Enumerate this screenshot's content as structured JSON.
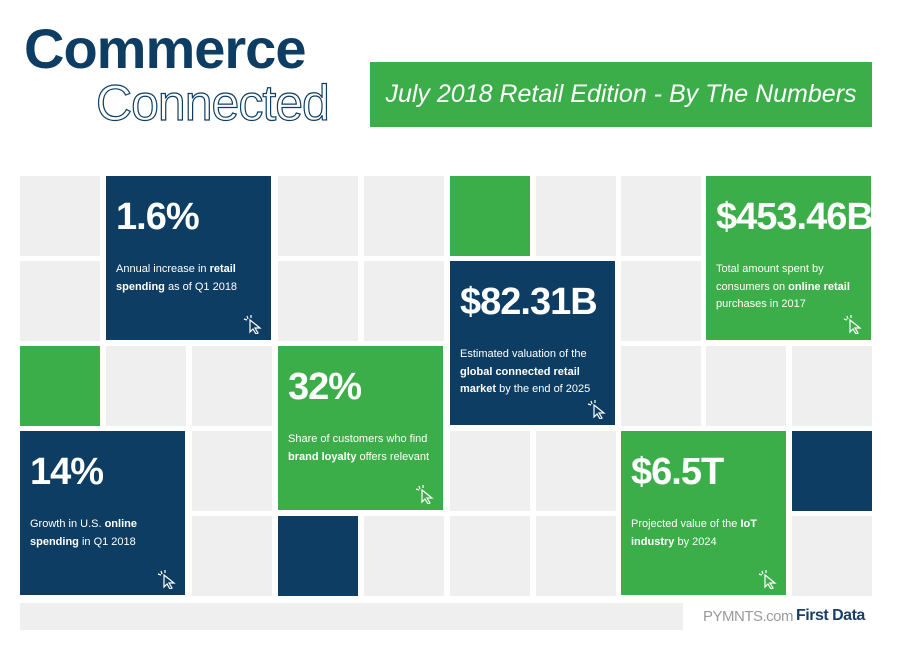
{
  "header": {
    "title_bold": "Commerce",
    "title_light": "Connected",
    "banner": "July 2018 Retail Edition - By The Numbers"
  },
  "cards": [
    {
      "value": "1.6%",
      "color": "#0e3d63",
      "description": [
        {
          "text": "Annual increase in ",
          "bold": false
        },
        {
          "text": "retail spending",
          "bold": true
        },
        {
          "text": " as of Q1 2018",
          "bold": false
        }
      ]
    },
    {
      "value": "$453.46B",
      "color": "#3cae49",
      "description": [
        {
          "text": "Total amount spent by consumers on ",
          "bold": false
        },
        {
          "text": "online retail",
          "bold": true
        },
        {
          "text": " purchases in 2017",
          "bold": false
        }
      ]
    },
    {
      "value": "$82.31B",
      "color": "#0e3d63",
      "description": [
        {
          "text": "Estimated valuation of the ",
          "bold": false
        },
        {
          "text": "global connected retail market",
          "bold": true
        },
        {
          "text": " by the end of 2025",
          "bold": false
        }
      ]
    },
    {
      "value": "32%",
      "color": "#3cae49",
      "description": [
        {
          "text": "Share of customers who find ",
          "bold": false
        },
        {
          "text": "brand loyalty",
          "bold": true
        },
        {
          "text": " offers relevant",
          "bold": false
        }
      ]
    },
    {
      "value": "14%",
      "color": "#0e3d63",
      "description": [
        {
          "text": "Growth in U.S. ",
          "bold": false
        },
        {
          "text": "online spending",
          "bold": true
        },
        {
          "text": " in Q1 2018",
          "bold": false
        }
      ]
    },
    {
      "value": "$6.5T",
      "color": "#3cae49",
      "description": [
        {
          "text": "Projected value of the ",
          "bold": false
        },
        {
          "text": "IoT industry",
          "bold": true
        },
        {
          "text": " by 2024",
          "bold": false
        }
      ]
    }
  ],
  "footer": {
    "logo_1": "PYMNTS.com",
    "logo_2": "First Data"
  }
}
